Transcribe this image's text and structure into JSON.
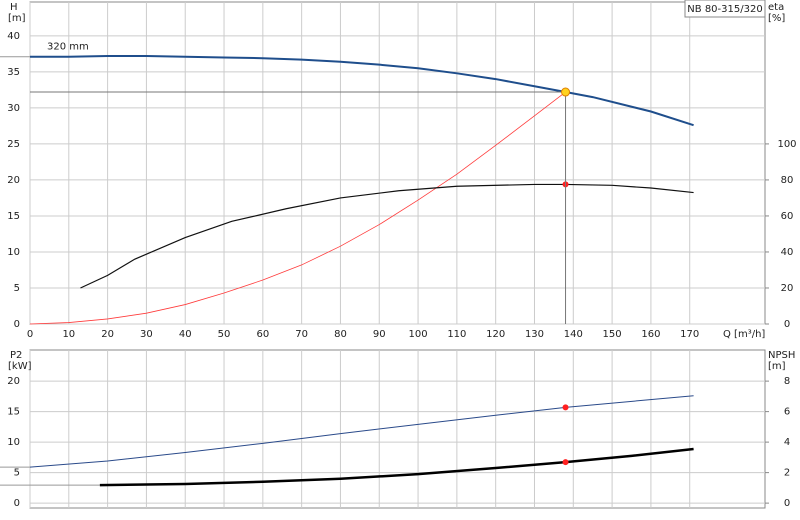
{
  "chart_data": [
    {
      "type": "line",
      "title": "NB 80-315/320",
      "xlabel": "Q [m³/h]",
      "ylabel": "H",
      "yunit": "[m]",
      "y2label": "eta",
      "y2unit": "[%]",
      "xlim": [
        0,
        189.4
      ],
      "xticks": [
        0,
        10,
        20,
        30,
        40,
        50,
        60,
        70,
        80,
        90,
        100,
        110,
        120,
        130,
        140,
        150,
        160,
        170
      ],
      "ylim": [
        0,
        44.7
      ],
      "yticks": [
        0,
        5,
        10,
        15,
        20,
        25,
        30,
        35,
        40
      ],
      "y2lim": [
        0,
        178.8
      ],
      "y2ticks": [
        0,
        20,
        40,
        60,
        80,
        100
      ],
      "grid": true,
      "series": [
        {
          "name": "320 mm",
          "color": "#1f4e8c",
          "extend_left": true,
          "x": [
            0,
            10,
            20,
            30,
            40,
            50,
            60,
            70,
            80,
            90,
            100,
            110,
            120,
            130,
            138,
            145,
            160,
            171
          ],
          "values": [
            37.1,
            37.1,
            37.2,
            37.2,
            37.1,
            37.0,
            36.9,
            36.7,
            36.4,
            36.0,
            35.5,
            34.8,
            34.0,
            33.0,
            32.2,
            31.5,
            29.5,
            27.6
          ]
        },
        {
          "color": "#ff3b3b",
          "x": [
            0,
            10,
            20,
            30,
            40,
            50,
            60,
            70,
            80,
            90,
            100,
            110,
            120,
            130,
            138
          ],
          "values": [
            0,
            0.2,
            0.7,
            1.5,
            2.7,
            4.3,
            6.1,
            8.2,
            10.8,
            13.8,
            17.2,
            20.8,
            24.8,
            28.9,
            32.2
          ]
        },
        {
          "color": "#111111",
          "axis": "y2",
          "x": [
            13,
            20,
            27,
            40,
            52,
            66,
            80,
            95,
            110,
            130,
            138,
            150,
            160,
            171
          ],
          "values": [
            20,
            27,
            36,
            48,
            57,
            64,
            70,
            74,
            76.5,
            77.5,
            77.5,
            77,
            75.5,
            73
          ]
        }
      ],
      "points": [
        {
          "x": 138,
          "y": 77.5,
          "axis": "y2",
          "color": "#ff2020"
        },
        {
          "x": 138,
          "y": 32.2,
          "color": "#ffd21f",
          "guides": true
        }
      ]
    },
    {
      "type": "line",
      "ylabel": "P2",
      "yunit": "[kW]",
      "y2label": "NPSH",
      "y2unit": "[m]",
      "xlim": [
        0,
        189.4
      ],
      "xticks": [
        0,
        10,
        20,
        30,
        40,
        50,
        60,
        70,
        80,
        90,
        100,
        110,
        120,
        130,
        140,
        150,
        160,
        170
      ],
      "ylim": [
        -0.8,
        25.1
      ],
      "yticks": [
        0,
        5,
        10,
        15,
        20
      ],
      "y2lim": [
        -0.32,
        10.04
      ],
      "y2ticks": [
        0,
        2,
        4,
        6,
        8
      ],
      "grid": true,
      "series": [
        {
          "color": "#2a4a8a",
          "extend_left": true,
          "x": [
            0,
            20,
            40,
            60,
            80,
            100,
            120,
            138,
            171
          ],
          "values": [
            5.9,
            6.9,
            8.3,
            9.8,
            11.4,
            12.9,
            14.4,
            15.7,
            17.6
          ]
        },
        {
          "color": "#000000",
          "axis": "y2",
          "extend_left": true,
          "x": [
            18,
            40,
            60,
            80,
            100,
            120,
            138,
            155,
            171
          ],
          "values": [
            1.18,
            1.25,
            1.4,
            1.6,
            1.9,
            2.3,
            2.69,
            3.1,
            3.55
          ]
        }
      ],
      "points": [
        {
          "x": 138,
          "y": 15.7,
          "color": "#ff2020"
        },
        {
          "x": 138,
          "y": 2.69,
          "axis": "y2",
          "color": "#ff2020"
        }
      ]
    }
  ]
}
